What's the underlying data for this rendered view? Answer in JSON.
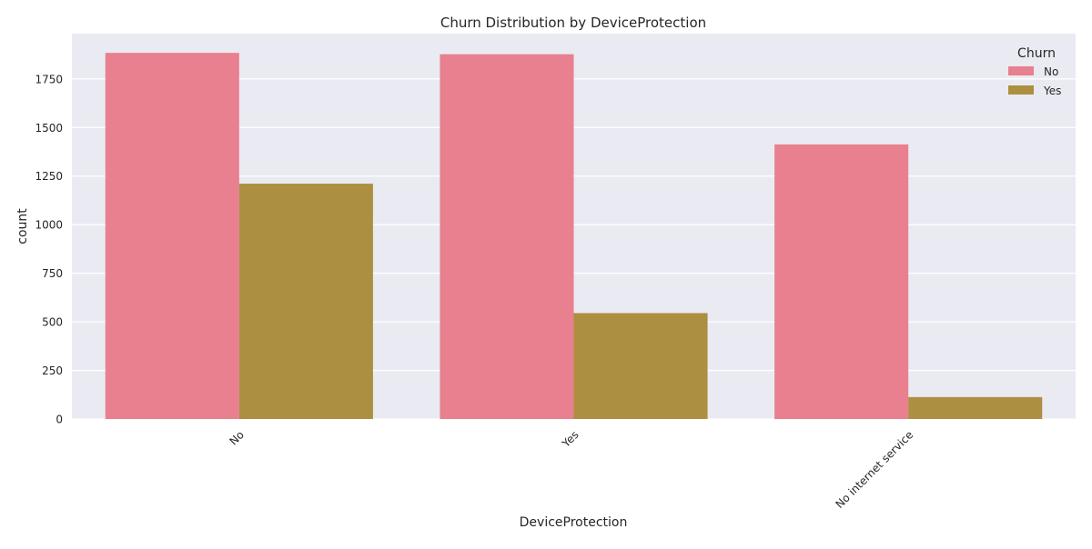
{
  "chart_data": {
    "type": "bar",
    "title": "Churn Distribution by DeviceProtection",
    "xlabel": "DeviceProtection",
    "ylabel": "count",
    "categories": [
      "No",
      "Yes",
      "No internet service"
    ],
    "series": [
      {
        "name": "No",
        "values": [
          1884,
          1877,
          1413
        ],
        "color": "#e8808f"
      },
      {
        "name": "Yes",
        "values": [
          1211,
          545,
          113
        ],
        "color": "#ac8f40"
      }
    ],
    "ylim": [
      0,
      1983
    ],
    "yticks": [
      0,
      250,
      500,
      750,
      1000,
      1250,
      1500,
      1750
    ],
    "legend": {
      "title": "Churn",
      "placement": "top-right"
    },
    "grid": true,
    "background_color": "#eaeaf2",
    "grid_color": "#ffffff"
  }
}
